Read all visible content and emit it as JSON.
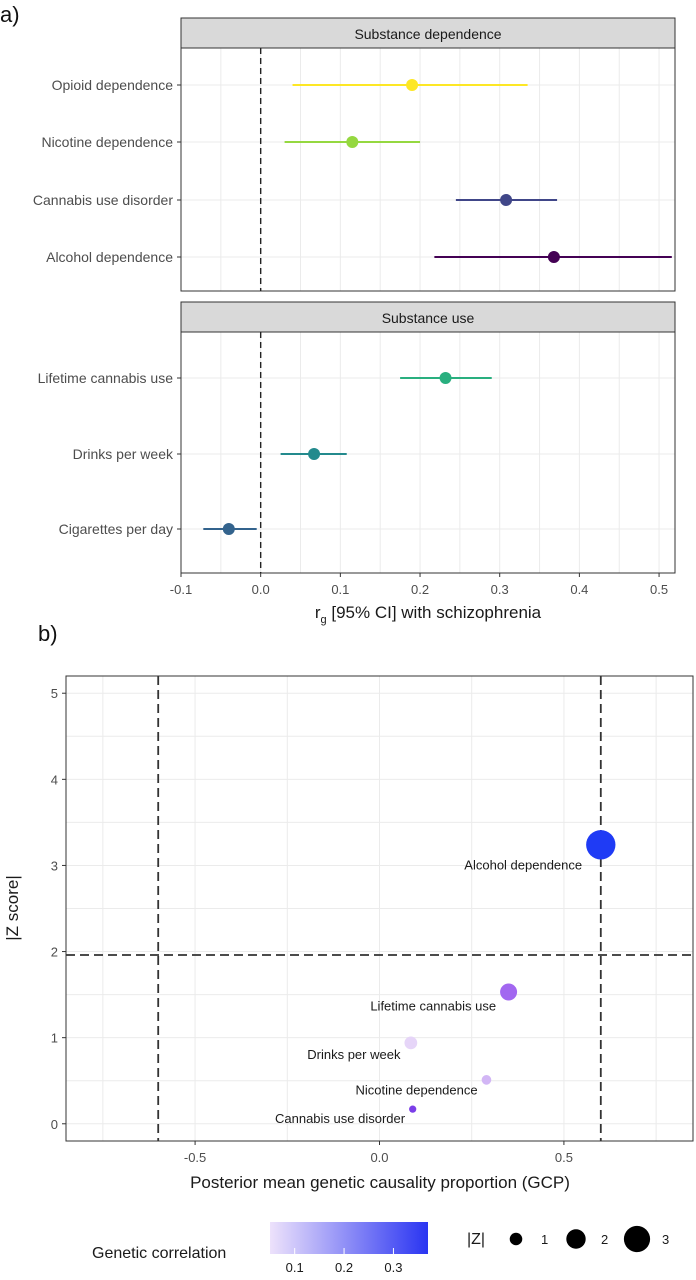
{
  "panels": {
    "a_label": "a)",
    "b_label": "b)"
  },
  "chart_data": [
    {
      "type": "forest",
      "panel": "a)",
      "xlabel_main": "r",
      "xlabel_sub": "g",
      "xlabel_rest": " [95% CI] with schizophrenia",
      "xlim": [
        -0.1,
        0.52
      ],
      "x_ticks": [
        -0.1,
        0.0,
        0.1,
        0.2,
        0.3,
        0.4,
        0.5
      ],
      "x_tick_labels": [
        "-0.1",
        "0.0",
        "0.1",
        "0.2",
        "0.3",
        "0.4",
        "0.5"
      ],
      "reference_line": 0,
      "grid": true,
      "facets": [
        {
          "title": "Substance dependence",
          "rows": [
            {
              "label": "Opioid dependence",
              "estimate": 0.19,
              "lower": 0.04,
              "upper": 0.335,
              "color": "#FDE725"
            },
            {
              "label": "Nicotine dependence",
              "estimate": 0.115,
              "lower": 0.03,
              "upper": 0.2,
              "color": "#95D840"
            },
            {
              "label": "Cannabis use disorder",
              "estimate": 0.308,
              "lower": 0.245,
              "upper": 0.372,
              "color": "#404688"
            },
            {
              "label": "Alcohol dependence",
              "estimate": 0.368,
              "lower": 0.218,
              "upper": 0.516,
              "color": "#440154"
            }
          ]
        },
        {
          "title": "Substance use",
          "rows": [
            {
              "label": "Lifetime cannabis use",
              "estimate": 0.232,
              "lower": 0.175,
              "upper": 0.29,
              "color": "#29AF7F"
            },
            {
              "label": "Drinks per week",
              "estimate": 0.067,
              "lower": 0.025,
              "upper": 0.108,
              "color": "#238A8D"
            },
            {
              "label": "Cigarettes per day",
              "estimate": -0.04,
              "lower": -0.072,
              "upper": -0.005,
              "color": "#33638D"
            }
          ]
        }
      ]
    },
    {
      "type": "scatter",
      "panel": "b)",
      "xlabel": "Posterior mean genetic causality proportion (GCP)",
      "ylabel": "|Z score|",
      "xlim": [
        -0.85,
        0.85
      ],
      "ylim": [
        -0.2,
        5.2
      ],
      "x_ticks": [
        -0.5,
        0.0,
        0.5
      ],
      "x_tick_labels": [
        "-0.5",
        "0.0",
        "0.5"
      ],
      "y_ticks": [
        0,
        1,
        2,
        3,
        4,
        5
      ],
      "y_tick_labels": [
        "0",
        "1",
        "2",
        "3",
        "4",
        "5"
      ],
      "dashed_vlines": [
        -0.6,
        0.6
      ],
      "dashed_hline": 1.96,
      "grid": true,
      "points": [
        {
          "label": "Alcohol dependence",
          "gcp": 0.6,
          "z": 3.24,
          "rg": 0.37,
          "color": "#1F3BF5"
        },
        {
          "label": "Lifetime cannabis use",
          "gcp": 0.35,
          "z": 1.53,
          "rg": 0.23,
          "color": "#A267F0"
        },
        {
          "label": "Drinks per week",
          "gcp": 0.085,
          "z": 0.94,
          "rg": 0.07,
          "color": "#E6D5F8"
        },
        {
          "label": "Nicotine dependence",
          "gcp": 0.29,
          "z": 0.51,
          "rg": 0.12,
          "color": "#D2B6F5"
        },
        {
          "label": "Cannabis use disorder",
          "gcp": 0.09,
          "z": 0.17,
          "rg": 0.31,
          "color": "#7B3EE8"
        }
      ],
      "legend": {
        "color_title": "Genetic correlation",
        "color_ticks": [
          0.1,
          0.2,
          0.3
        ],
        "color_tick_labels": [
          "0.1",
          "0.2",
          "0.3"
        ],
        "color_low": "#EDE2FB",
        "color_high": "#2A35F2",
        "size_title": "|Z|",
        "size_ticks": [
          1,
          2,
          3
        ],
        "size_tick_labels": [
          "1",
          "2",
          "3"
        ]
      }
    }
  ]
}
